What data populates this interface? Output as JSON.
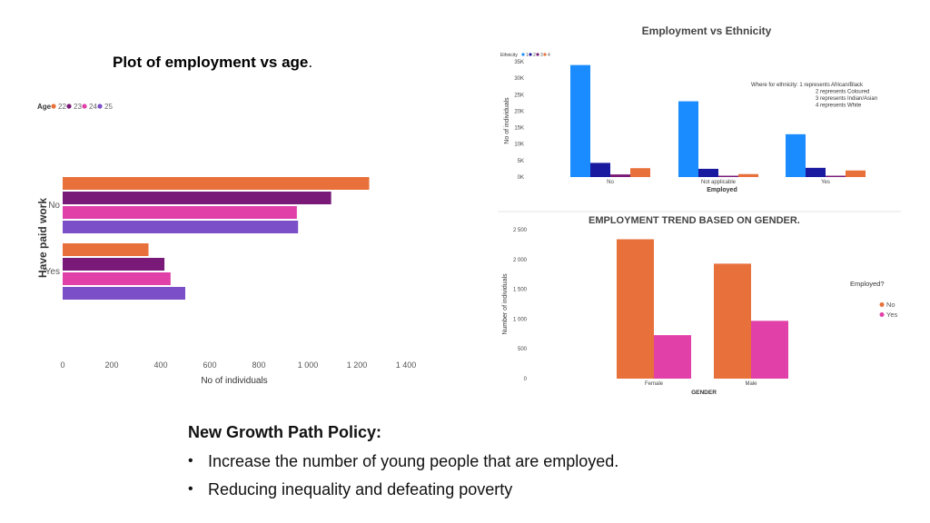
{
  "slide": {
    "title": "Plot of employment vs age",
    "title_suffix": ".",
    "policy_heading": "New Growth Path Policy:",
    "bullets": [
      "Increase the number of young people that are employed.",
      "Reducing inequality and defeating poverty"
    ]
  },
  "chart_data": [
    {
      "type": "bar",
      "orientation": "horizontal",
      "legend_title": "Age",
      "categories": [
        "No",
        "Yes"
      ],
      "series": [
        {
          "name": "22",
          "color": "#e8703a",
          "values": [
            1250,
            350
          ]
        },
        {
          "name": "23",
          "color": "#7a1a78",
          "values": [
            1095,
            415
          ]
        },
        {
          "name": "24",
          "color": "#e040a8",
          "values": [
            955,
            440
          ]
        },
        {
          "name": "25",
          "color": "#7b4fc8",
          "values": [
            960,
            500
          ]
        }
      ],
      "xlabel": "No of individuals",
      "ylabel": "Have paid work",
      "xlim": [
        0,
        1400
      ],
      "xticks": [
        "0",
        "200",
        "400",
        "600",
        "800",
        "1 000",
        "1 200",
        "1 400"
      ],
      "legend_position": "top-left",
      "grid": false
    },
    {
      "type": "bar",
      "title": "Employment vs  Ethnicity",
      "legend_title": "Ethnicity",
      "categories": [
        "No",
        "Not applicable",
        "Yes"
      ],
      "series": [
        {
          "name": "1",
          "color": "#1a8cff",
          "values": [
            34000,
            23000,
            13000
          ]
        },
        {
          "name": "2",
          "color": "#1a1aa0",
          "values": [
            4300,
            2500,
            2800
          ]
        },
        {
          "name": "3",
          "color": "#7a1a78",
          "values": [
            800,
            400,
            400
          ]
        },
        {
          "name": "4",
          "color": "#e8703a",
          "values": [
            2700,
            900,
            2000
          ]
        }
      ],
      "xlabel": "Employed",
      "ylabel": "No of individuals",
      "ylim": [
        0,
        35000
      ],
      "yticks": [
        "0K",
        "5K",
        "10K",
        "15K",
        "20K",
        "25K",
        "30K",
        "35K"
      ],
      "annotation": [
        "Where for ethnicity: 1 represents African/Black",
        "2 represents Coloured",
        "3 represents Indian/Asian",
        "4 represents White"
      ],
      "legend_position": "top-left",
      "grid": false
    },
    {
      "type": "bar",
      "title": "EMPLOYMENT TREND BASED ON GENDER.",
      "legend_title": "Employed?",
      "categories": [
        "Female",
        "Male"
      ],
      "series": [
        {
          "name": "No",
          "color": "#e8703a",
          "values": [
            2340,
            1930
          ]
        },
        {
          "name": "Yes",
          "color": "#e040a8",
          "values": [
            730,
            970
          ]
        }
      ],
      "xlabel": "GENDER",
      "ylabel": "Number of individuals",
      "ylim": [
        0,
        2500
      ],
      "yticks": [
        "0",
        "500",
        "1 000",
        "1 500",
        "2 000",
        "2 500"
      ],
      "legend_position": "right",
      "grid": false
    }
  ]
}
